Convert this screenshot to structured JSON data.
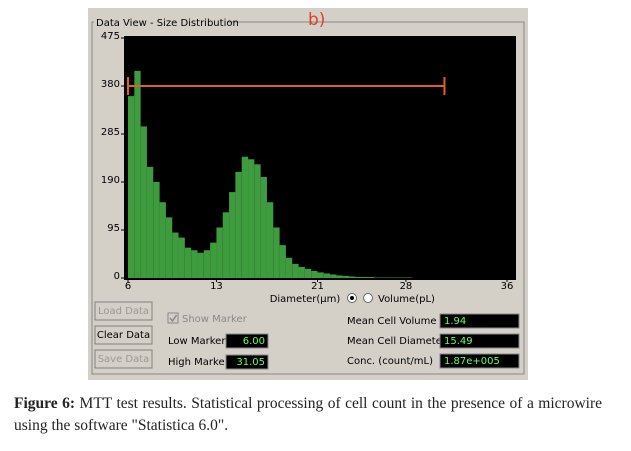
{
  "panel": {
    "title": "Data View - Size Distribution",
    "label": "b)"
  },
  "chart": {
    "type": "histogram",
    "color": "#3e9b3e",
    "xlim": [
      6,
      36
    ],
    "xticks": [
      6,
      13,
      21,
      28,
      36
    ],
    "ylim": [
      0,
      475
    ],
    "yticks": [
      0,
      95,
      190,
      285,
      380,
      475
    ],
    "bins": [
      6,
      6.5,
      7,
      7.5,
      8,
      8.5,
      9,
      9.5,
      10,
      10.5,
      11,
      11.5,
      12,
      12.5,
      13,
      13.5,
      14,
      14.5,
      15,
      15.5,
      16,
      16.5,
      17,
      17.5,
      18,
      18.5,
      19,
      19.5,
      20,
      20.5,
      21,
      21.5,
      22,
      22.5,
      23,
      23.5,
      24,
      24.5,
      25,
      25.5,
      26,
      26.5,
      27,
      27.5,
      28,
      28.5,
      29,
      29.5,
      30,
      30.5,
      31,
      31.5,
      32,
      32.5,
      33,
      33.5,
      34,
      34.5,
      35,
      35.5,
      36
    ],
    "counts": [
      360,
      410,
      300,
      220,
      190,
      150,
      120,
      90,
      80,
      60,
      55,
      50,
      55,
      70,
      100,
      130,
      170,
      210,
      240,
      235,
      225,
      200,
      150,
      100,
      65,
      40,
      28,
      22,
      18,
      14,
      11,
      9,
      7,
      5,
      4,
      3,
      2,
      2,
      2,
      1,
      1,
      1,
      1,
      1,
      1,
      0,
      0,
      0,
      0,
      0,
      0,
      0,
      0,
      0,
      0,
      0,
      0,
      0,
      0,
      0
    ]
  },
  "x_mode": {
    "options": [
      "Diameter(µm)",
      "Volume(pL)"
    ]
  },
  "buttons": [
    {
      "label": "Load Data",
      "enabled": false
    },
    {
      "label": "Clear Data",
      "enabled": true
    },
    {
      "label": "Save Data",
      "enabled": false
    }
  ],
  "show_marker": {
    "label": "Show Marker",
    "checked": true
  },
  "low_marker": {
    "label": "Low Marker",
    "value": 6,
    "value_label": "6.00"
  },
  "high_marker": {
    "label": "High Marker",
    "value": 31.05,
    "value_label": "31.05"
  },
  "stats": [
    {
      "label": "Mean Cell Volume",
      "value": "1.94"
    },
    {
      "label": "Mean Cell Diameter",
      "value": "15.49"
    },
    {
      "label": "Conc. (count/mL)",
      "value": "1.87e+005"
    }
  ],
  "caption": {
    "label": "Figure 6:",
    "text": "MTT test results. Statistical processing of cell count in the presence of a microwire  using the software \"Statistica 6.0\"."
  }
}
